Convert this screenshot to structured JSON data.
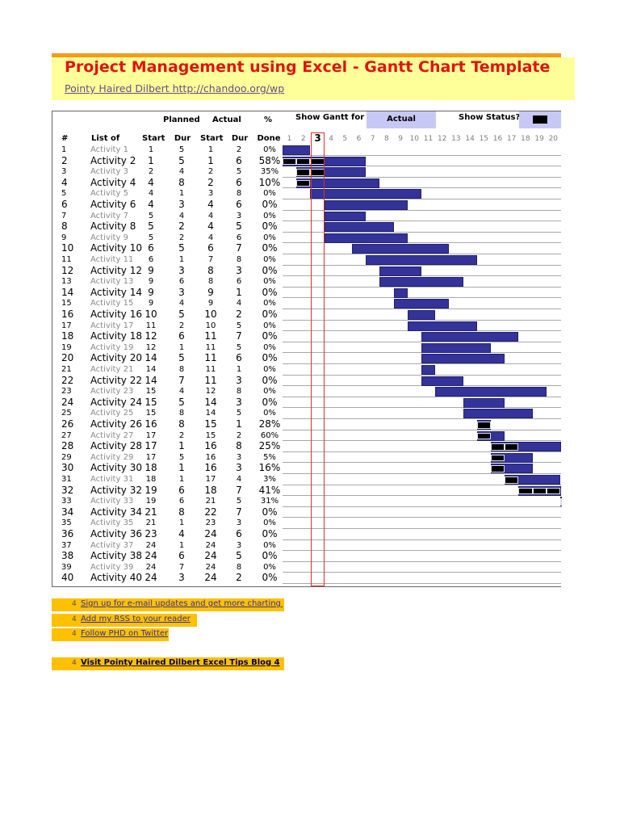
{
  "title": "Project Management using Excel - Gantt Chart Template",
  "subtitle": "Pointy Haired Dilbert http://chandoo.org/wp",
  "header": {
    "planned": "Planned",
    "actual": "Actual",
    "pct": "%",
    "num": "#",
    "list_of": "List of",
    "start": "Start",
    "dur": "Dur",
    "done": "Done",
    "show_gantt_for": "Show Gantt for",
    "gantt_for_value": "Actual",
    "show_status": "Show Status?"
  },
  "current_day": "3",
  "days": [
    "1",
    "2",
    "3",
    "4",
    "5",
    "6",
    "7",
    "8",
    "9",
    "10",
    "11",
    "12",
    "13",
    "14",
    "15",
    "16",
    "17",
    "18",
    "19",
    "20"
  ],
  "colors": {
    "bar": "#333399",
    "status": "#000000",
    "today": "#e0302c",
    "title": "#e0140f",
    "link_bg": "#ffc000"
  },
  "chart_data": {
    "type": "table",
    "columns": [
      "#",
      "List of Activity",
      "Planned Start",
      "Planned Dur",
      "Actual Start",
      "Actual Dur",
      "% Done"
    ],
    "rows": [
      [
        "1",
        "Activity 1",
        "1",
        "5",
        "1",
        "2",
        "0%"
      ],
      [
        "2",
        "Activity 2",
        "1",
        "5",
        "1",
        "6",
        "58%"
      ],
      [
        "3",
        "Activity 3",
        "2",
        "4",
        "2",
        "5",
        "35%"
      ],
      [
        "4",
        "Activity 4",
        "4",
        "8",
        "2",
        "6",
        "10%"
      ],
      [
        "5",
        "Activity 5",
        "4",
        "1",
        "3",
        "8",
        "0%"
      ],
      [
        "6",
        "Activity 6",
        "4",
        "3",
        "4",
        "6",
        "0%"
      ],
      [
        "7",
        "Activity 7",
        "5",
        "4",
        "4",
        "3",
        "0%"
      ],
      [
        "8",
        "Activity 8",
        "5",
        "2",
        "4",
        "5",
        "0%"
      ],
      [
        "9",
        "Activity 9",
        "5",
        "2",
        "4",
        "6",
        "0%"
      ],
      [
        "10",
        "Activity 10",
        "6",
        "5",
        "6",
        "7",
        "0%"
      ],
      [
        "11",
        "Activity 11",
        "6",
        "1",
        "7",
        "8",
        "0%"
      ],
      [
        "12",
        "Activity 12",
        "9",
        "3",
        "8",
        "3",
        "0%"
      ],
      [
        "13",
        "Activity 13",
        "9",
        "6",
        "8",
        "6",
        "0%"
      ],
      [
        "14",
        "Activity 14",
        "9",
        "3",
        "9",
        "1",
        "0%"
      ],
      [
        "15",
        "Activity 15",
        "9",
        "4",
        "9",
        "4",
        "0%"
      ],
      [
        "16",
        "Activity 16",
        "10",
        "5",
        "10",
        "2",
        "0%"
      ],
      [
        "17",
        "Activity 17",
        "11",
        "2",
        "10",
        "5",
        "0%"
      ],
      [
        "18",
        "Activity 18",
        "12",
        "6",
        "11",
        "7",
        "0%"
      ],
      [
        "19",
        "Activity 19",
        "12",
        "1",
        "11",
        "5",
        "0%"
      ],
      [
        "20",
        "Activity 20",
        "14",
        "5",
        "11",
        "6",
        "0%"
      ],
      [
        "21",
        "Activity 21",
        "14",
        "8",
        "11",
        "1",
        "0%"
      ],
      [
        "22",
        "Activity 22",
        "14",
        "7",
        "11",
        "3",
        "0%"
      ],
      [
        "23",
        "Activity 23",
        "15",
        "4",
        "12",
        "8",
        "0%"
      ],
      [
        "24",
        "Activity 24",
        "15",
        "5",
        "14",
        "3",
        "0%"
      ],
      [
        "25",
        "Activity 25",
        "15",
        "8",
        "14",
        "5",
        "0%"
      ],
      [
        "26",
        "Activity 26",
        "16",
        "8",
        "15",
        "1",
        "28%"
      ],
      [
        "27",
        "Activity 27",
        "17",
        "2",
        "15",
        "2",
        "60%"
      ],
      [
        "28",
        "Activity 28",
        "17",
        "1",
        "16",
        "8",
        "25%"
      ],
      [
        "29",
        "Activity 29",
        "17",
        "5",
        "16",
        "3",
        "5%"
      ],
      [
        "30",
        "Activity 30",
        "18",
        "1",
        "16",
        "3",
        "16%"
      ],
      [
        "31",
        "Activity 31",
        "18",
        "1",
        "17",
        "4",
        "3%"
      ],
      [
        "32",
        "Activity 32",
        "19",
        "6",
        "18",
        "7",
        "41%"
      ],
      [
        "33",
        "Activity 33",
        "19",
        "6",
        "21",
        "5",
        "31%"
      ],
      [
        "34",
        "Activity 34",
        "21",
        "8",
        "22",
        "7",
        "0%"
      ],
      [
        "35",
        "Activity 35",
        "21",
        "1",
        "23",
        "3",
        "0%"
      ],
      [
        "36",
        "Activity 36",
        "23",
        "4",
        "24",
        "6",
        "0%"
      ],
      [
        "37",
        "Activity 37",
        "24",
        "1",
        "24",
        "3",
        "0%"
      ],
      [
        "38",
        "Activity 38",
        "24",
        "6",
        "24",
        "5",
        "0%"
      ],
      [
        "39",
        "Activity 39",
        "24",
        "7",
        "24",
        "8",
        "0%"
      ],
      [
        "40",
        "Activity 40",
        "24",
        "3",
        "24",
        "2",
        "0%"
      ]
    ]
  },
  "links": [
    {
      "text": "Sign up for e-mail updates and get more charting tips",
      "arrow": "4"
    },
    {
      "text": "Add my RSS to your reader",
      "arrow": "4"
    },
    {
      "text": "Follow PHD on Twitter",
      "arrow": "4"
    },
    {
      "text": "Visit Pointy Haired Dilbert Excel Tips Blog 4",
      "arrow": "4"
    }
  ]
}
